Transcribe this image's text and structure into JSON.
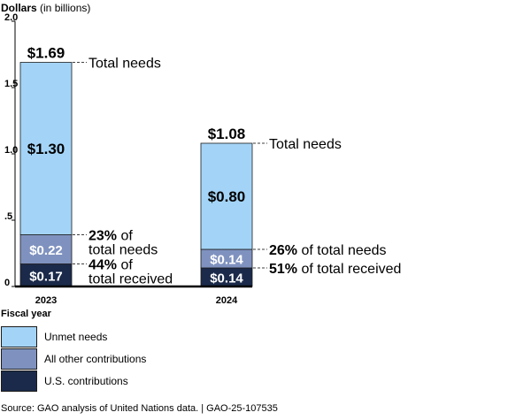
{
  "chart_data": {
    "type": "bar",
    "stacked": true,
    "ylabel": "Dollars",
    "ylabel_unit": "(in billions)",
    "xlabel": "Fiscal year",
    "ylim": [
      0,
      2.0
    ],
    "y_ticks": [
      {
        "value": 0,
        "label": "0"
      },
      {
        "value": 0.5,
        "label": ".5"
      },
      {
        "value": 1.0,
        "label": "1.0"
      },
      {
        "value": 1.5,
        "label": "1.5"
      },
      {
        "value": 2.0,
        "label": "2.0"
      }
    ],
    "categories": [
      "2023",
      "2024"
    ],
    "series": [
      {
        "name": "U.S. contributions",
        "key": "us",
        "color": "#1b2a4a",
        "values": [
          0.17,
          0.14
        ],
        "labels": [
          "$0.17",
          "$0.14"
        ]
      },
      {
        "name": "All other contributions",
        "key": "other",
        "color": "#7f92bf",
        "values": [
          0.22,
          0.14
        ],
        "labels": [
          "$0.22",
          "$0.14"
        ]
      },
      {
        "name": "Unmet needs",
        "key": "unmet",
        "color": "#a3d4f7",
        "values": [
          1.3,
          0.8
        ],
        "labels": [
          "$1.30",
          "$0.80"
        ]
      }
    ],
    "totals": [
      1.69,
      1.08
    ],
    "total_labels": [
      "$1.69",
      "$1.08"
    ],
    "annotations": [
      {
        "category": 0,
        "target": "total",
        "bold": "",
        "text": "Total needs"
      },
      {
        "category": 0,
        "target": "other",
        "bold": "23%",
        "text": " of",
        "line2": "total needs"
      },
      {
        "category": 0,
        "target": "us",
        "bold": "44%",
        "text": " of",
        "line2": "total received"
      },
      {
        "category": 1,
        "target": "total",
        "bold": "",
        "text": "Total needs"
      },
      {
        "category": 1,
        "target": "other",
        "bold": "26%",
        "text": " of total needs"
      },
      {
        "category": 1,
        "target": "us",
        "bold": "51%",
        "text": " of total received"
      }
    ],
    "legend_order": [
      "unmet",
      "other",
      "us"
    ]
  },
  "source": "Source: GAO analysis of United Nations data.   |  GAO-25-107535"
}
